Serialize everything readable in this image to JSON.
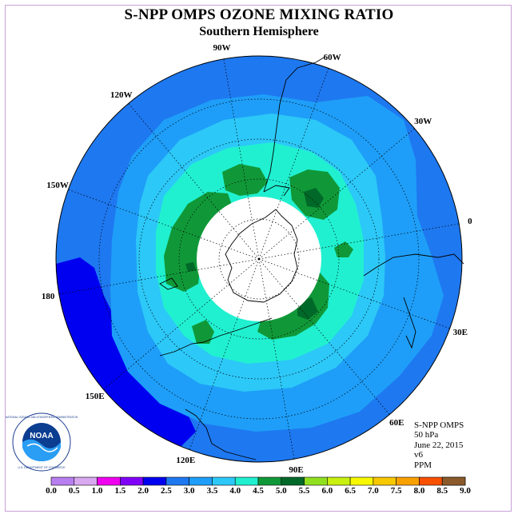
{
  "title": "S-NPP OMPS OZONE MIXING RATIO",
  "subtitle": "Southern Hemisphere",
  "info": {
    "instrument": "S-NPP OMPS",
    "level": "50 hPa",
    "date": "June 22, 2015",
    "version": "v6",
    "units": "PPM"
  },
  "logo": {
    "text": "NOAA",
    "ring_text": "NATIONAL OCEANIC AND ATMOSPHERIC ADMINISTRATION",
    "bottom_text": "U.S. DEPARTMENT OF COMMERCE"
  },
  "longitude_labels": [
    "0",
    "30W",
    "60W",
    "90W",
    "120W",
    "150W",
    "180",
    "150E",
    "120E",
    "90E",
    "60E",
    "30E"
  ],
  "colorbar": {
    "labels": [
      "0.0",
      "0.5",
      "1.0",
      "1.5",
      "2.0",
      "2.5",
      "3.0",
      "3.5",
      "4.0",
      "4.5",
      "5.0",
      "5.5",
      "6.0",
      "6.5",
      "7.0",
      "7.5",
      "8.0",
      "8.5",
      "9.0"
    ],
    "colors": [
      "#b87ff0",
      "#d8a8f0",
      "#f000f0",
      "#8000f8",
      "#0000f0",
      "#1e78f0",
      "#1e9ef8",
      "#2cc8f8",
      "#20f0d0",
      "#109838",
      "#006828",
      "#90e020",
      "#c8f010",
      "#f8f800",
      "#f8c800",
      "#f8a000",
      "#f85000",
      "#f80000",
      "#8b5a2b"
    ]
  },
  "map_colors": {
    "bg": "#1e78f0",
    "c25": "#1e9ef8",
    "c30": "#2cc8f8",
    "c35": "#20f0d0",
    "c40": "#109838",
    "c45": "#006828",
    "c20": "#0000f0"
  }
}
